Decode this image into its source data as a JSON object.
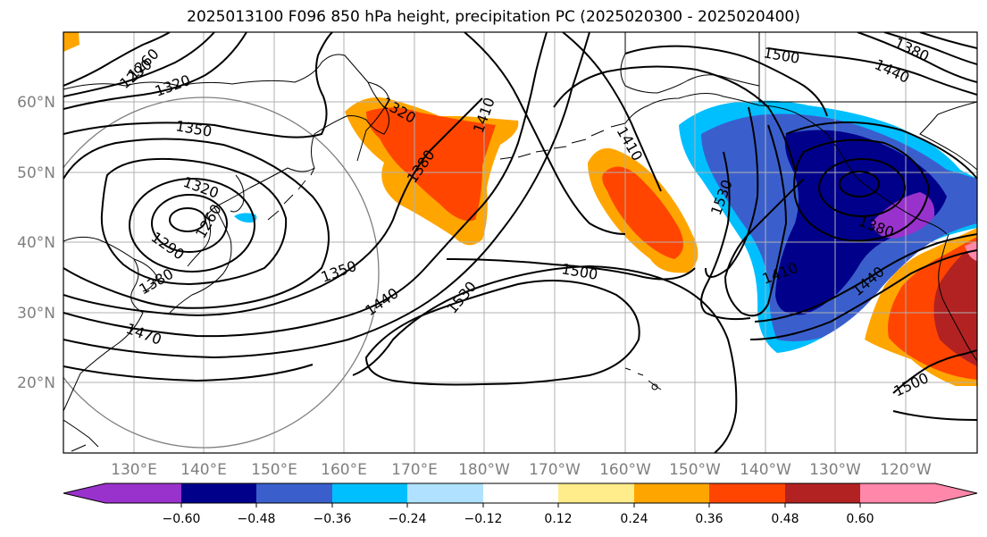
{
  "title": "2025013100 F096 850 hPa height, precipitation PC (2025020300 - 2025020400)",
  "lat_labels": [
    "60°N",
    "50°N",
    "40°N",
    "30°N",
    "20°N"
  ],
  "lon_labels": [
    "130°E",
    "140°E",
    "150°E",
    "160°E",
    "170°E",
    "180°W",
    "170°W",
    "160°W",
    "150°W",
    "140°W",
    "130°W",
    "120°W"
  ],
  "colorbar": {
    "ticks": [
      "−0.60",
      "−0.48",
      "−0.36",
      "−0.24",
      "−0.12",
      "0.12",
      "0.24",
      "0.36",
      "0.48",
      "0.60"
    ],
    "colors": [
      "#9932cc",
      "#00008b",
      "#3a5fcd",
      "#00bfff",
      "#b0e2ff",
      "#ffffff",
      "#ffec8b",
      "#ffa500",
      "#ff4500",
      "#b22222",
      "#ff88aa"
    ]
  },
  "contour_labels": [
    "1260",
    "1290",
    "1320",
    "1350",
    "1320",
    "1290",
    "1260",
    "1380",
    "1320",
    "1410",
    "1380",
    "1350",
    "1440",
    "1470",
    "1530",
    "1500",
    "1410",
    "1530",
    "1440",
    "1380",
    "1500",
    "1500",
    "1440",
    "1410",
    "1380"
  ]
}
